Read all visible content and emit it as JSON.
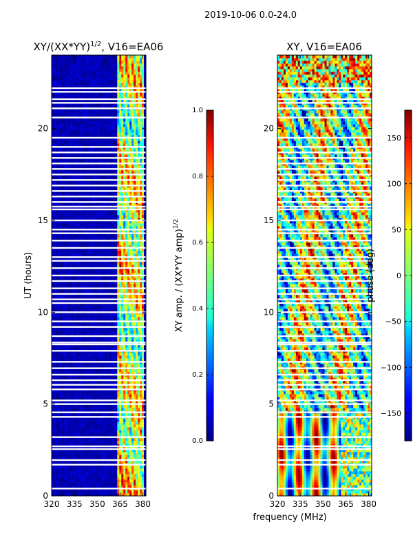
{
  "figure_title": "2019-10-06 0.0-24.0",
  "xlabel": "frequency (MHz)",
  "chart_data": [
    {
      "type": "heatmap",
      "title_main": "XY/(XX*YY)",
      "title_exp": "1/2",
      "title_tail": ", V16=EA06",
      "xlabel": "",
      "ylabel": "UT (hours)",
      "xlim": [
        320,
        382
      ],
      "ylim": [
        0,
        24
      ],
      "xticks": [
        320,
        335,
        350,
        365,
        380
      ],
      "yticks": [
        0,
        5,
        10,
        15,
        20
      ],
      "colorbar": {
        "label_main": "XY amp. / (XX*YY amp)",
        "label_exp": "1/2",
        "range": [
          0.0,
          1.0
        ],
        "ticks": [
          "0.0",
          "0.2",
          "0.4",
          "0.6",
          "0.8",
          "1.0"
        ],
        "colormap": "jet"
      },
      "dominant_low_freq_value": 0.05,
      "active_band_mhz": [
        363,
        380
      ],
      "active_band_value_range": [
        0.25,
        0.85
      ],
      "flagged_hours": [
        0.4,
        1.7,
        1.95,
        2.55,
        2.7,
        3.2,
        4.3,
        4.55,
        5.0,
        5.2,
        5.8,
        6.05,
        6.3,
        6.6,
        6.95,
        7.3,
        7.9,
        8.25,
        8.35,
        8.7,
        9.2,
        9.5,
        10.0,
        10.5,
        10.7,
        11.0,
        11.3,
        11.7,
        12.0,
        12.4,
        12.8,
        13.0,
        13.5,
        13.9,
        14.3,
        14.5,
        15.0,
        15.6,
        15.75,
        16.0,
        16.3,
        16.6,
        16.9,
        17.2,
        17.5,
        17.8,
        18.1,
        18.4,
        18.7,
        19.0,
        19.5,
        20.6,
        21.1,
        21.4,
        21.6,
        22.0,
        22.2
      ]
    },
    {
      "type": "heatmap",
      "title_main": "XY, V16=EA06",
      "xlabel": "frequency (MHz)",
      "ylabel": "",
      "xlim": [
        320,
        382
      ],
      "ylim": [
        0,
        24
      ],
      "xticks": [
        320,
        335,
        350,
        365,
        380
      ],
      "yticks": [
        0,
        5,
        10,
        15,
        20
      ],
      "colorbar": {
        "label_main": "phase (deg)",
        "range": [
          -180,
          180
        ],
        "ticks": [
          "150",
          "100",
          "50",
          "0",
          "−50",
          "−100",
          "−150"
        ],
        "tick_values": [
          150,
          100,
          50,
          0,
          -50,
          -100,
          -150
        ],
        "colormap": "jet"
      },
      "value_note": "phase values scattered across full range -180 to 180 deg",
      "flagged_hours": [
        0.4,
        1.7,
        1.95,
        2.55,
        2.7,
        3.2,
        4.3,
        4.55,
        5.0,
        5.2,
        5.8,
        6.05,
        6.3,
        6.6,
        6.95,
        7.3,
        7.9,
        8.25,
        8.35,
        8.7,
        9.2,
        9.5,
        10.0,
        10.5,
        10.7,
        11.0,
        11.3,
        11.7,
        12.0,
        12.4,
        12.8,
        13.0,
        13.5,
        13.9,
        14.3,
        14.5,
        15.0,
        15.6,
        15.75,
        16.0,
        16.3,
        16.6,
        16.9,
        17.2,
        17.5,
        17.8,
        18.1,
        18.4,
        18.7,
        19.0,
        19.5,
        20.6,
        21.1,
        21.4,
        21.6,
        22.0,
        22.2
      ]
    }
  ]
}
